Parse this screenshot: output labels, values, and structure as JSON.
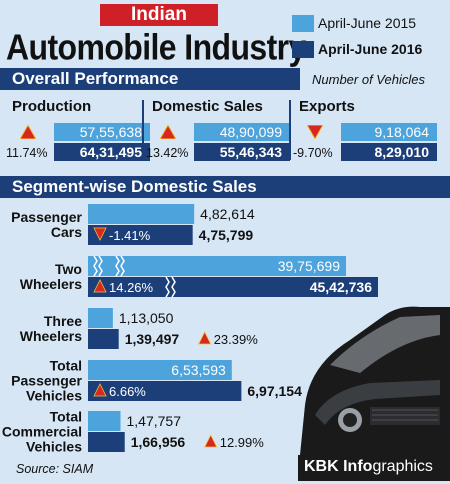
{
  "header": {
    "tag": "Indian",
    "title": "Automobile Industry",
    "legend": [
      {
        "label": "April-June 2015",
        "color": "#4da3dc"
      },
      {
        "label": "April-June 2016",
        "color": "#1c3f7a"
      }
    ]
  },
  "overall": {
    "section_title": "Overall Performance",
    "units": "Number of Vehicles",
    "items": [
      {
        "label": "Production",
        "v2015": "57,55,638",
        "v2016": "64,31,495",
        "change": "11.74%",
        "direction": "up"
      },
      {
        "label": "Domestic Sales",
        "v2015": "48,90,099",
        "v2016": "55,46,343",
        "change": "13.42%",
        "direction": "up"
      },
      {
        "label": "Exports",
        "v2015": "9,18,064",
        "v2016": "8,29,010",
        "change": "-9.70%",
        "direction": "down"
      }
    ]
  },
  "chart_data": {
    "type": "bar",
    "title": "Segment-wise Domestic Sales",
    "categories": [
      "Passenger Cars",
      "Two Wheelers",
      "Three Wheelers",
      "Total Passenger Vehicles",
      "Total Commercial Vehicles"
    ],
    "category_lines": [
      [
        "Passenger",
        "Cars"
      ],
      [
        "Two",
        "Wheelers"
      ],
      [
        "Three",
        "Wheelers"
      ],
      [
        "Total",
        "Passenger",
        "Vehicles"
      ],
      [
        "Total",
        "Commercial",
        "Vehicles"
      ]
    ],
    "series": [
      {
        "name": "April-June 2015",
        "values": [
          482614,
          3975699,
          113050,
          653593,
          147757
        ],
        "labels": [
          "4,82,614",
          "39,75,699",
          "1,13,050",
          "6,53,593",
          "1,47,757"
        ]
      },
      {
        "name": "April-June 2016",
        "values": [
          475799,
          4542736,
          139497,
          697154,
          166956
        ],
        "labels": [
          "4,75,799",
          "45,42,736",
          "1,39,497",
          "6,97,154",
          "1,66,956"
        ]
      }
    ],
    "changes": [
      {
        "text": "-1.41%",
        "direction": "down"
      },
      {
        "text": "14.26%",
        "direction": "up"
      },
      {
        "text": "23.39%",
        "direction": "up"
      },
      {
        "text": "6.66%",
        "direction": "up"
      },
      {
        "text": "12.99%",
        "direction": "up"
      }
    ],
    "axis_break_category": "Two Wheelers"
  },
  "footer": {
    "source": "Source: SIAM",
    "credit_bold": "KBK Info",
    "credit_rest": "graphics"
  }
}
